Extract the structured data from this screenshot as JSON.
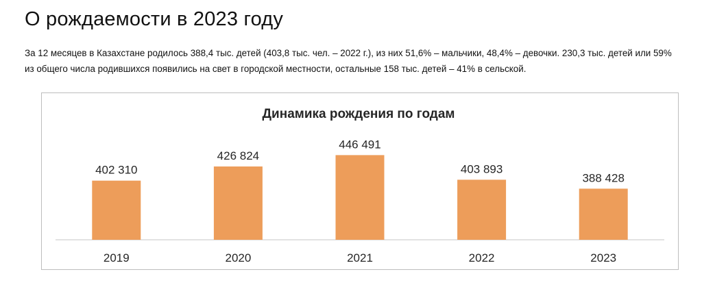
{
  "header": {
    "title": "О рождаемости в 2023 году"
  },
  "article": {
    "intro": "За 12 месяцев в Казахстане родилось 388,4 тыс. детей (403,8 тыс. чел. – 2022 г.), из них 51,6% – мальчики, 48,4% – девочки. 230,3 тыс. детей или 59% из общего числа родившихся появились на свет в городской местности, остальные 158 тыс. детей – 41% в сельской."
  },
  "colors": {
    "bar": "#ED9D5A",
    "axis": "#D9D9D9",
    "text": "#262626",
    "frame": "#BDBDBD"
  },
  "chart_data": {
    "type": "bar",
    "title": "Динамика рождения по годам",
    "xlabel": "",
    "ylabel": "",
    "categories": [
      "2019",
      "2020",
      "2021",
      "2022",
      "2023"
    ],
    "values": [
      402310,
      426824,
      446491,
      403893,
      388428
    ],
    "value_labels": [
      "402 310",
      "426 824",
      "446 491",
      "403 893",
      "388 428"
    ],
    "ylim": [
      300000,
      460000
    ],
    "grid": false,
    "legend": "none"
  }
}
